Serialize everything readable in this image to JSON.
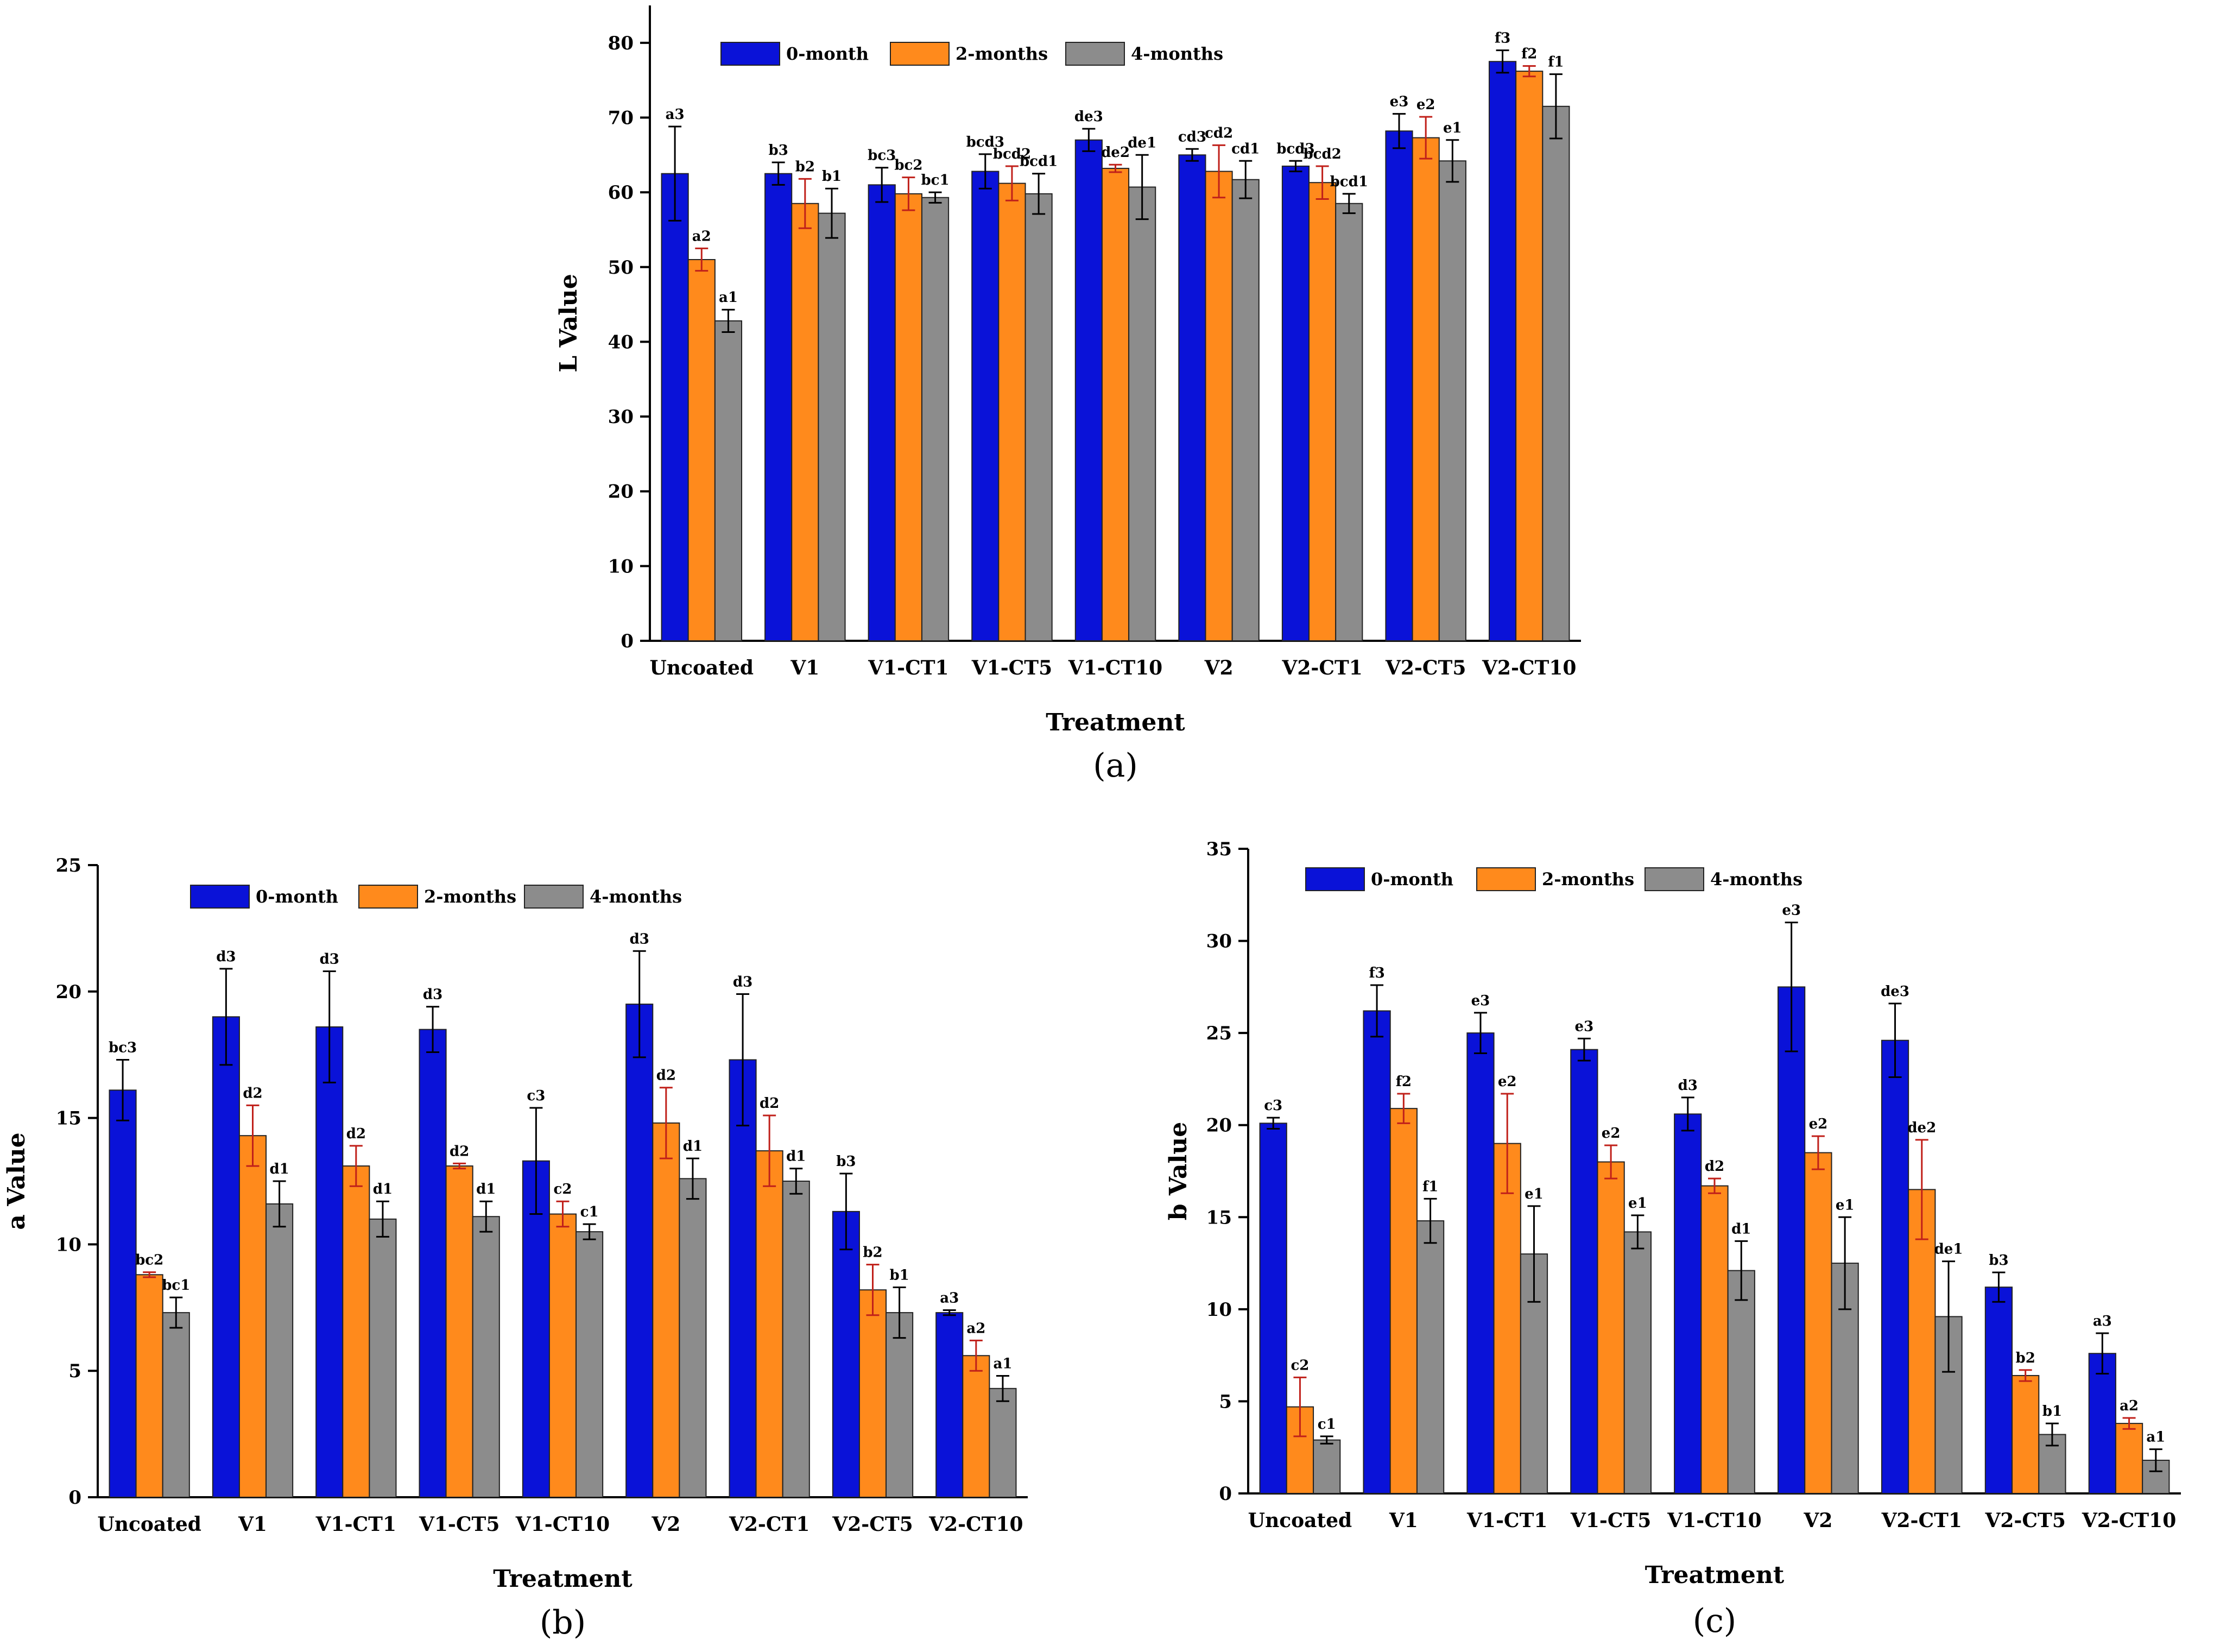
{
  "colors": {
    "s0": "#0a12d8",
    "s1": "#ff8a1c",
    "s2": "#8c8c8c",
    "err_s0": "#000000",
    "err_s1": "#c0201a",
    "err_s2": "#000000"
  },
  "chart_data": [
    {
      "id": "a",
      "type": "bar",
      "panel_label": "(a)",
      "xlabel": "Treatment",
      "ylabel": "L Value",
      "ylim": [
        0,
        85
      ],
      "yticks": [
        0,
        10,
        20,
        30,
        40,
        50,
        60,
        70,
        80
      ],
      "categories": [
        "Uncoated",
        "V1",
        "V1-CT1",
        "V1-CT5",
        "V1-CT10",
        "V2",
        "V2-CT1",
        "V2-CT5",
        "V2-CT10"
      ],
      "legend": [
        "0-month",
        "2-months",
        "4-months"
      ],
      "series": [
        {
          "name": "0-month",
          "values": [
            62.5,
            62.5,
            61,
            62.8,
            67,
            65,
            63.5,
            68.2,
            77.5
          ],
          "errors": [
            6.3,
            1.5,
            2.3,
            2.3,
            1.5,
            0.8,
            0.7,
            2.3,
            1.5
          ],
          "labels": [
            "a3",
            "b3",
            "bc3",
            "bcd3",
            "de3",
            "cd3",
            "bcd3",
            "e3",
            "f3"
          ]
        },
        {
          "name": "2-months",
          "values": [
            51,
            58.5,
            59.8,
            61.2,
            63.2,
            62.8,
            61.3,
            67.3,
            76.2
          ],
          "errors": [
            1.5,
            3.3,
            2.2,
            2.3,
            0.5,
            3.5,
            2.2,
            2.8,
            0.7
          ],
          "labels": [
            "a2",
            "b2",
            "bc2",
            "bcd2",
            "de2",
            "cd2",
            "bcd2",
            "e2",
            "f2"
          ]
        },
        {
          "name": "4-months",
          "values": [
            42.8,
            57.2,
            59.3,
            59.8,
            60.7,
            61.7,
            58.5,
            64.2,
            71.5
          ],
          "errors": [
            1.5,
            3.3,
            0.7,
            2.7,
            4.3,
            2.5,
            1.3,
            2.8,
            4.3
          ],
          "labels": [
            "a1",
            "b1",
            "bc1",
            "bcd1",
            "de1",
            "cd1",
            "bcd1",
            "e1",
            "f1"
          ]
        }
      ]
    },
    {
      "id": "b",
      "type": "bar",
      "panel_label": "(b)",
      "xlabel": "Treatment",
      "ylabel": "a Value",
      "ylim": [
        0,
        25
      ],
      "yticks": [
        0,
        5,
        10,
        15,
        20,
        25
      ],
      "categories": [
        "Uncoated",
        "V1",
        "V1-CT1",
        "V1-CT5",
        "V1-CT10",
        "V2",
        "V2-CT1",
        "V2-CT5",
        "V2-CT10"
      ],
      "legend": [
        "0-month",
        "2-months",
        "4-months"
      ],
      "series": [
        {
          "name": "0-month",
          "values": [
            16.1,
            19,
            18.6,
            18.5,
            13.3,
            19.5,
            17.3,
            11.3,
            7.3
          ],
          "errors": [
            1.2,
            1.9,
            2.2,
            0.9,
            2.1,
            2.1,
            2.6,
            1.5,
            0.1
          ],
          "labels": [
            "bc3",
            "d3",
            "d3",
            "d3",
            "c3",
            "d3",
            "d3",
            "b3",
            "a3"
          ]
        },
        {
          "name": "2-months",
          "values": [
            8.8,
            14.3,
            13.1,
            13.1,
            11.2,
            14.8,
            13.7,
            8.2,
            5.6
          ],
          "errors": [
            0.1,
            1.2,
            0.8,
            0.1,
            0.5,
            1.4,
            1.4,
            1,
            0.6
          ],
          "labels": [
            "bc2",
            "d2",
            "d2",
            "d2",
            "c2",
            "d2",
            "d2",
            "b2",
            "a2"
          ]
        },
        {
          "name": "4-months",
          "values": [
            7.3,
            11.6,
            11,
            11.1,
            10.5,
            12.6,
            12.5,
            7.3,
            4.3
          ],
          "errors": [
            0.6,
            0.9,
            0.7,
            0.6,
            0.3,
            0.8,
            0.5,
            1,
            0.5
          ],
          "labels": [
            "bc1",
            "d1",
            "d1",
            "d1",
            "c1",
            "d1",
            "d1",
            "b1",
            "a1"
          ]
        }
      ]
    },
    {
      "id": "c",
      "type": "bar",
      "panel_label": "(c)",
      "xlabel": "Treatment",
      "ylabel": "b Value",
      "ylim": [
        0,
        35
      ],
      "yticks": [
        0,
        5,
        10,
        15,
        20,
        25,
        30,
        35
      ],
      "categories": [
        "Uncoated",
        "V1",
        "V1-CT1",
        "V1-CT5",
        "V1-CT10",
        "V2",
        "V2-CT1",
        "V2-CT5",
        "V2-CT10"
      ],
      "legend": [
        "0-month",
        "2-months",
        "4-months"
      ],
      "series": [
        {
          "name": "0-month",
          "values": [
            20.1,
            26.2,
            25,
            24.1,
            20.6,
            27.5,
            24.6,
            11.2,
            7.6
          ],
          "errors": [
            0.3,
            1.4,
            1.1,
            0.6,
            0.9,
            3.5,
            2,
            0.8,
            1.1
          ],
          "labels": [
            "c3",
            "f3",
            "e3",
            "e3",
            "d3",
            "e3",
            "de3",
            "b3",
            "a3"
          ]
        },
        {
          "name": "2-months",
          "values": [
            4.7,
            20.9,
            19,
            18,
            16.7,
            18.5,
            16.5,
            6.4,
            3.8
          ],
          "errors": [
            1.6,
            0.8,
            2.7,
            0.9,
            0.4,
            0.9,
            2.7,
            0.3,
            0.3
          ],
          "labels": [
            "c2",
            "f2",
            "e2",
            "e2",
            "d2",
            "e2",
            "de2",
            "b2",
            "a2"
          ]
        },
        {
          "name": "4-months",
          "values": [
            2.9,
            14.8,
            13,
            14.2,
            12.1,
            12.5,
            9.6,
            3.2,
            1.8
          ],
          "errors": [
            0.2,
            1.2,
            2.6,
            0.9,
            1.6,
            2.5,
            3,
            0.6,
            0.6
          ],
          "labels": [
            "c1",
            "f1",
            "e1",
            "e1",
            "d1",
            "e1",
            "de1",
            "b1",
            "a1"
          ]
        }
      ]
    }
  ]
}
